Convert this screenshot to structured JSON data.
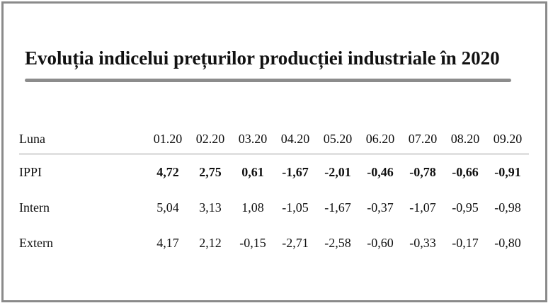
{
  "title": "Evoluția indicelui prețurilor producției industriale în 2020",
  "table": {
    "header_label": "Luna",
    "months": [
      "01.20",
      "02.20",
      "03.20",
      "04.20",
      "05.20",
      "06.20",
      "07.20",
      "08.20",
      "09.20"
    ],
    "rows": [
      {
        "label": "IPPI",
        "bold": true,
        "values": [
          "4,72",
          "2,75",
          "0,61",
          "-1,67",
          "-2,01",
          "-0,46",
          "-0,78",
          "-0,66",
          "-0,91"
        ]
      },
      {
        "label": "Intern",
        "bold": false,
        "values": [
          "5,04",
          "3,13",
          "1,08",
          "-1,05",
          "-1,67",
          "-0,37",
          "-1,07",
          "-0,95",
          "-0,98"
        ]
      },
      {
        "label": "Extern",
        "bold": false,
        "values": [
          "4,17",
          "2,12",
          "-0,15",
          "-2,71",
          "-2,58",
          "-0,60",
          "-0,33",
          "-0,17",
          "-0,80"
        ]
      }
    ]
  }
}
